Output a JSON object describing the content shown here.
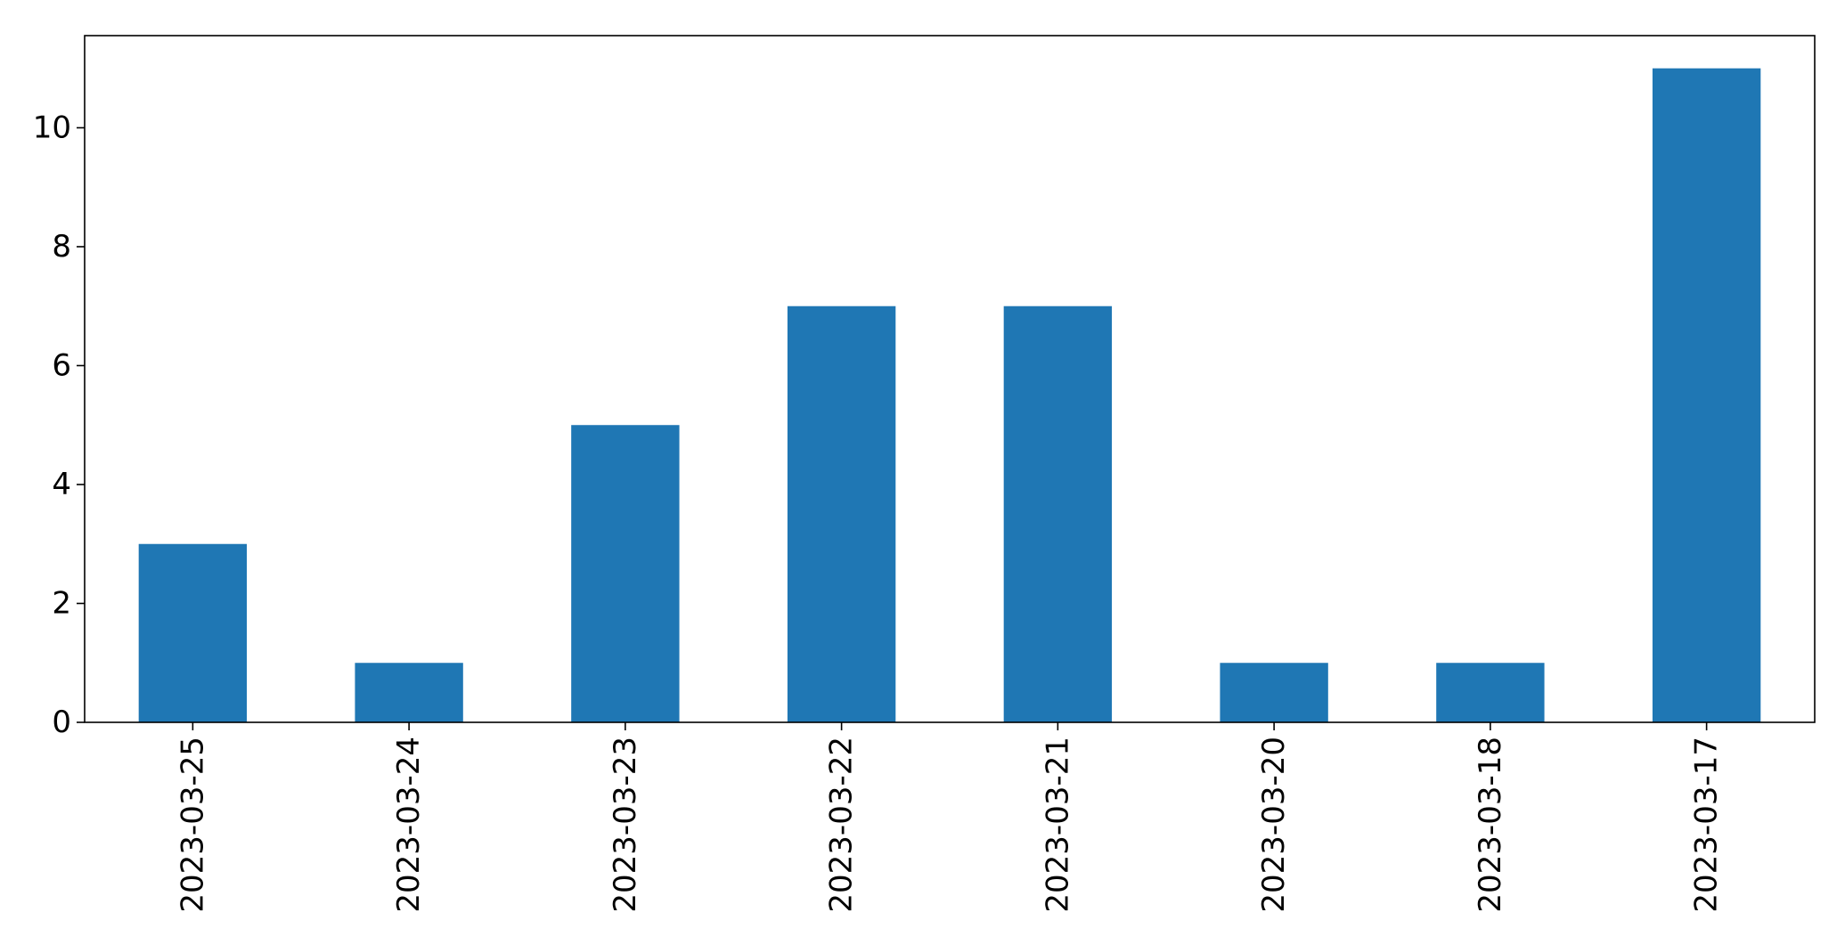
{
  "chart_data": {
    "type": "bar",
    "title": "",
    "xlabel": "",
    "ylabel": "",
    "categories": [
      "2023-03-25",
      "2023-03-24",
      "2023-03-23",
      "2023-03-22",
      "2023-03-21",
      "2023-03-20",
      "2023-03-18",
      "2023-03-17"
    ],
    "values": [
      3,
      1,
      5,
      7,
      7,
      1,
      1,
      11
    ],
    "ylim": [
      0,
      11.55
    ],
    "yticks": [
      0,
      2,
      4,
      6,
      8,
      10
    ],
    "grid": false,
    "legend": "none",
    "bar_color": "#1f77b4"
  }
}
